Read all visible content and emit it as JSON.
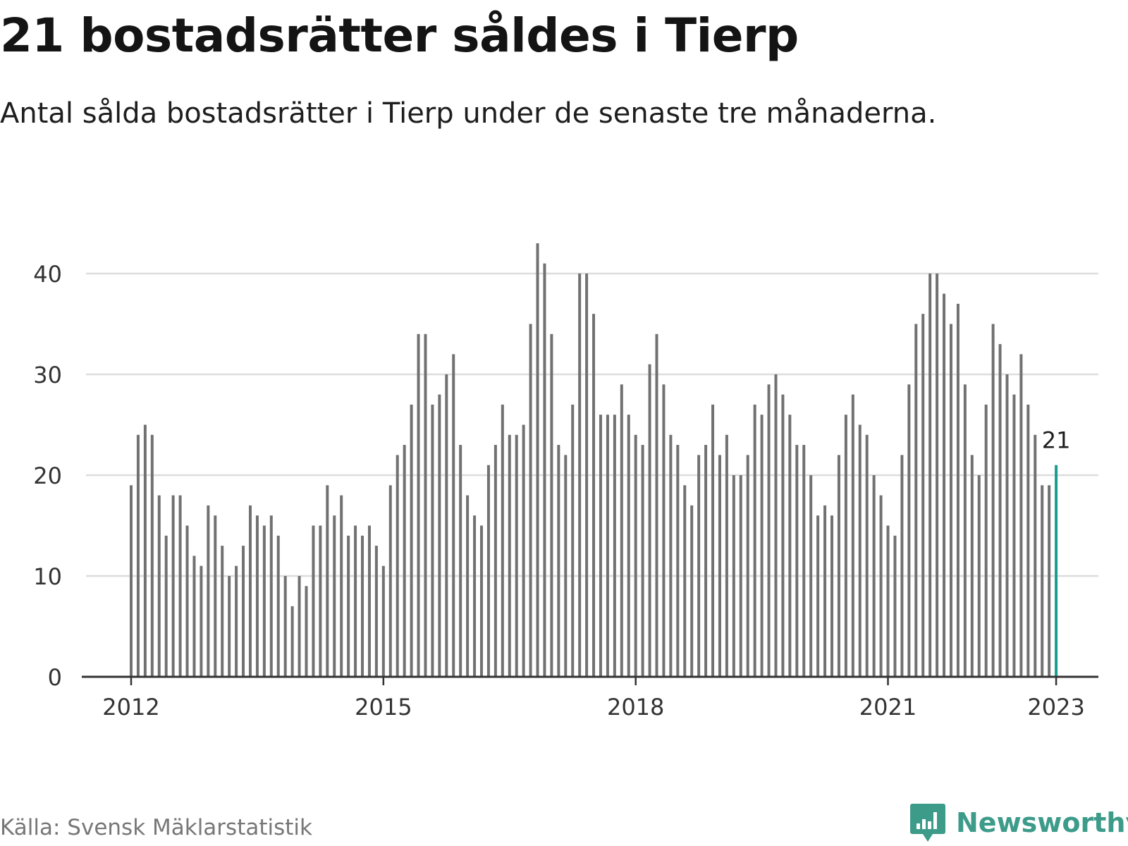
{
  "header": {
    "title": "21 bostadsrätter såldes i Tierp",
    "subtitle": "Antal sålda bostadsrätter i Tierp under de senaste tre månaderna."
  },
  "footer": {
    "source": "Källa: Svensk Mäklarstatistik",
    "brand": "Newsworthy",
    "brand_icon": "bar-chart-speech-bubble-icon"
  },
  "colors": {
    "bar": "#717171",
    "highlight": "#1a9c93",
    "grid": "#dddddd",
    "axis": "#333333",
    "brand": "#3d9b8a"
  },
  "chart_data": {
    "type": "bar",
    "title": "",
    "xlabel": "",
    "ylabel": "",
    "ylim": [
      0,
      43
    ],
    "yticks": [
      0,
      10,
      20,
      30,
      40
    ],
    "xticks": [
      "2012",
      "2015",
      "2018",
      "2021",
      "2023"
    ],
    "grid": true,
    "x": [
      "2012-01",
      "2012-02",
      "2012-03",
      "2012-04",
      "2012-05",
      "2012-06",
      "2012-07",
      "2012-08",
      "2012-09",
      "2012-10",
      "2012-11",
      "2012-12",
      "2013-01",
      "2013-02",
      "2013-03",
      "2013-04",
      "2013-05",
      "2013-06",
      "2013-07",
      "2013-08",
      "2013-09",
      "2013-10",
      "2013-11",
      "2013-12",
      "2014-01",
      "2014-02",
      "2014-03",
      "2014-04",
      "2014-05",
      "2014-06",
      "2014-07",
      "2014-08",
      "2014-09",
      "2014-10",
      "2014-11",
      "2014-12",
      "2015-01",
      "2015-02",
      "2015-03",
      "2015-04",
      "2015-05",
      "2015-06",
      "2015-07",
      "2015-08",
      "2015-09",
      "2015-10",
      "2015-11",
      "2015-12",
      "2016-01",
      "2016-02",
      "2016-03",
      "2016-04",
      "2016-05",
      "2016-06",
      "2016-07",
      "2016-08",
      "2016-09",
      "2016-10",
      "2016-11",
      "2016-12",
      "2017-01",
      "2017-02",
      "2017-03",
      "2017-04",
      "2017-05",
      "2017-06",
      "2017-07",
      "2017-08",
      "2017-09",
      "2017-10",
      "2017-11",
      "2017-12",
      "2018-01",
      "2018-02",
      "2018-03",
      "2018-04",
      "2018-05",
      "2018-06",
      "2018-07",
      "2018-08",
      "2018-09",
      "2018-10",
      "2018-11",
      "2018-12",
      "2019-01",
      "2019-02",
      "2019-03",
      "2019-04",
      "2019-05",
      "2019-06",
      "2019-07",
      "2019-08",
      "2019-09",
      "2019-10",
      "2019-11",
      "2019-12",
      "2020-01",
      "2020-02",
      "2020-03",
      "2020-04",
      "2020-05",
      "2020-06",
      "2020-07",
      "2020-08",
      "2020-09",
      "2020-10",
      "2020-11",
      "2020-12",
      "2021-01",
      "2021-02",
      "2021-03",
      "2021-04",
      "2021-05",
      "2021-06",
      "2021-07",
      "2021-08",
      "2021-09",
      "2021-10",
      "2021-11",
      "2021-12",
      "2022-01",
      "2022-02",
      "2022-03",
      "2022-04",
      "2022-05",
      "2022-06",
      "2022-07",
      "2022-08",
      "2022-09",
      "2022-10",
      "2022-11",
      "2022-12",
      "2023-01"
    ],
    "values": [
      19,
      24,
      25,
      24,
      18,
      14,
      18,
      18,
      15,
      12,
      11,
      17,
      16,
      13,
      10,
      11,
      13,
      17,
      16,
      15,
      16,
      14,
      10,
      7,
      10,
      9,
      15,
      15,
      19,
      16,
      18,
      14,
      15,
      14,
      15,
      13,
      11,
      19,
      22,
      23,
      27,
      34,
      34,
      27,
      28,
      30,
      32,
      23,
      18,
      16,
      15,
      21,
      23,
      27,
      24,
      24,
      25,
      35,
      43,
      41,
      34,
      23,
      22,
      27,
      40,
      40,
      36,
      26,
      26,
      26,
      29,
      26,
      24,
      23,
      31,
      34,
      29,
      24,
      23,
      19,
      17,
      22,
      23,
      27,
      22,
      24,
      20,
      20,
      22,
      27,
      26,
      29,
      30,
      28,
      26,
      23,
      23,
      20,
      16,
      17,
      16,
      22,
      26,
      28,
      25,
      24,
      20,
      18,
      15,
      14,
      22,
      29,
      35,
      36,
      40,
      40,
      38,
      35,
      37,
      29,
      22,
      20,
      27,
      35,
      33,
      30,
      28,
      32,
      27,
      24,
      19,
      19,
      21
    ],
    "annotation": {
      "label": "21",
      "index": 132
    }
  }
}
